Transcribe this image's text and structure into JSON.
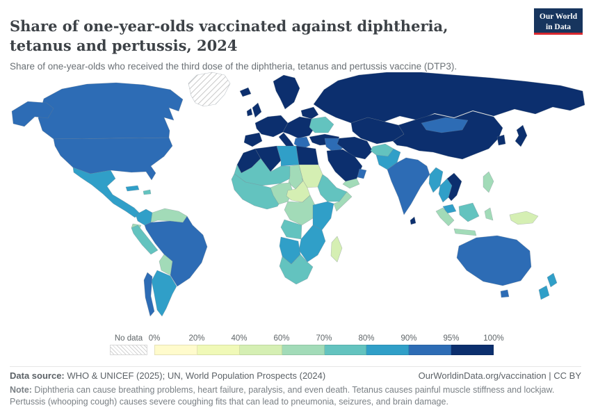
{
  "header": {
    "title": "Share of one-year-olds vaccinated against diphtheria, tetanus and pertussis, 2024",
    "subtitle": "Share of one-year-olds who received the third dose of the diphtheria, tetanus and pertussis vaccine (DTP3).",
    "logo_line1": "Our World",
    "logo_line2": "in Data",
    "logo_bg_color": "#17355e",
    "logo_accent_color": "#d7282f"
  },
  "legend": {
    "no_data_label": "No data",
    "tick_labels": [
      "0%",
      "20%",
      "40%",
      "60%",
      "70%",
      "80%",
      "90%",
      "95%",
      "100%"
    ]
  },
  "footer": {
    "source_label": "Data source:",
    "source_text": " WHO & UNICEF (2025); UN, World Population Prospects (2024)",
    "rights_text": "OurWorldinData.org/vaccination | CC BY",
    "note_label": "Note:",
    "note_text": " Diphtheria can cause breathing problems, heart failure, paralysis, and even death. Tetanus causes painful muscle stiffness and lockjaw. Pertussis (whooping cough) causes severe coughing fits that can lead to pneumonia, seizures, and brain damage."
  },
  "chart_data": {
    "type": "choropleth",
    "title": "Share of one-year-olds vaccinated against diphtheria, tetanus and pertussis, 2024",
    "unit": "% of one-year-olds vaccinated (DTP3, third dose)",
    "legend_position": "bottom",
    "no_data": {
      "label": "No data",
      "style": "gray-hatch"
    },
    "bins": [
      {
        "label": "0-20",
        "min": 0,
        "max": 20,
        "color": "#fffbcc"
      },
      {
        "label": "20-40",
        "min": 20,
        "max": 40,
        "color": "#f0f9b7"
      },
      {
        "label": "40-60",
        "min": 40,
        "max": 60,
        "color": "#d5efb3"
      },
      {
        "label": "60-70",
        "min": 60,
        "max": 70,
        "color": "#a2dbb8"
      },
      {
        "label": "70-80",
        "min": 70,
        "max": 80,
        "color": "#63c3bf"
      },
      {
        "label": "80-90",
        "min": 80,
        "max": 90,
        "color": "#309fc8"
      },
      {
        "label": "90-95",
        "min": 90,
        "max": 95,
        "color": "#2d6cb5"
      },
      {
        "label": "95-100",
        "min": 95,
        "max": 100,
        "color": "#0c2f6e"
      }
    ],
    "region_bins": {
      "greenland": "no-data",
      "canada": "90-95",
      "alaska": "90-95",
      "usa": "90-95",
      "mexico-central-america": "80-90",
      "cuba": "80-90",
      "hispaniola": "70-80",
      "colombia": "80-90",
      "venezuela-guyanas": "60-70",
      "ecuador": "60-70",
      "peru": "70-80",
      "brazil": "90-95",
      "bolivia-paraguay": "60-70",
      "argentina": "80-90",
      "chile": "90-95",
      "iceland": "95-100",
      "uk": "95-100",
      "ireland": "95-100",
      "scandinavia": "95-100",
      "western-europe": "95-100",
      "iberia": "95-100",
      "italy": "95-100",
      "central-europe": "95-100",
      "balkans": "90-95",
      "ukraine": "70-80",
      "belarus-baltics": "95-100",
      "russia": "95-100",
      "kazakhstan-central-asia": "95-100",
      "turkey": "95-100",
      "iraq-syria": "90-95",
      "iran": "95-100",
      "saudi-arabia": "95-100",
      "yemen": "60-70",
      "oman": "90-95",
      "afghanistan": "70-80",
      "pakistan": "80-90",
      "india": "90-95",
      "sri-lanka": "95-100",
      "china": "95-100",
      "mongolia": "90-95",
      "korea": "95-100",
      "japan": "95-100",
      "myanmar": "80-90",
      "thailand": "80-90",
      "vietnam": "95-100",
      "malaysia": "80-90",
      "philippines": "60-70",
      "sumatra": "60-70",
      "java": "60-70",
      "borneo": "70-80",
      "sulawesi": "60-70",
      "new-guinea": "40-60",
      "australia": "90-95",
      "tasmania": "90-95",
      "new-zealand-north": "80-90",
      "new-zealand-south": "80-90",
      "morocco": "95-100",
      "algeria": "95-100",
      "libya": "80-90",
      "egypt": "95-100",
      "sahel": "70-80",
      "chad": "60-70",
      "sudan": "40-60",
      "west-africa": "70-80",
      "nigeria": "60-70",
      "central-africa": "40-60",
      "ethiopia": "70-80",
      "somalia": "60-70",
      "drc": "60-70",
      "kenya-tanzania": "80-90",
      "angola": "70-80",
      "zambia-zimbabwe": "80-90",
      "namibia-botswana": "80-90",
      "south-africa": "70-80",
      "madagascar": "40-60"
    }
  }
}
